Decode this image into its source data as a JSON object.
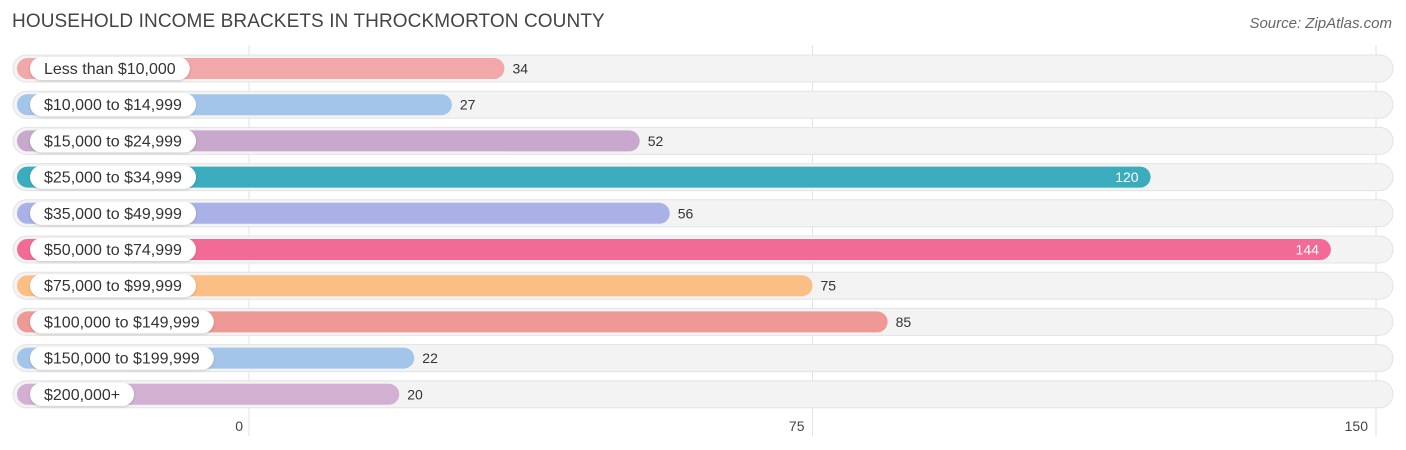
{
  "header": {
    "title": "HOUSEHOLD INCOME BRACKETS IN THROCKMORTON COUNTY",
    "source": "Source: ZipAtlas.com"
  },
  "chart_data": {
    "type": "bar",
    "orientation": "horizontal",
    "title": "HOUSEHOLD INCOME BRACKETS IN THROCKMORTON COUNTY",
    "xlabel": "",
    "ylabel": "",
    "xlim": [
      0,
      150
    ],
    "ticks": [
      0,
      75,
      150
    ],
    "grid": true,
    "categories": [
      "Less than $10,000",
      "$10,000 to $14,999",
      "$15,000 to $24,999",
      "$25,000 to $34,999",
      "$35,000 to $49,999",
      "$50,000 to $74,999",
      "$75,000 to $99,999",
      "$100,000 to $149,999",
      "$150,000 to $199,999",
      "$200,000+"
    ],
    "values": [
      34,
      27,
      52,
      120,
      56,
      144,
      75,
      85,
      22,
      20
    ],
    "colors": [
      "#f2a7a8",
      "#a4c5ea",
      "#c8a8cc",
      "#3aacbd",
      "#a9b1e6",
      "#f26b96",
      "#fbbf86",
      "#ee9995",
      "#a4c5ea",
      "#d2b0d3"
    ]
  }
}
